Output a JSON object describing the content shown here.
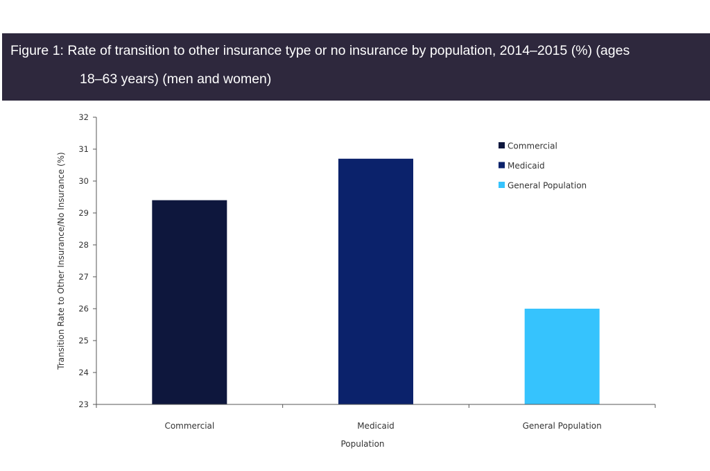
{
  "figure": {
    "title_line1": "Figure 1: Rate of transition to other insurance type or no insurance by population, 2014–2015 (%) (ages",
    "title_line2": "18–63 years) (men and women)"
  },
  "chart_data": {
    "type": "bar",
    "title": "Figure 1: Rate of transition to other insurance type or no insurance by population, 2014–2015 (%) (ages 18–63 years) (men and women)",
    "categories": [
      "Commercial",
      "Medicaid",
      "General Population"
    ],
    "values": [
      29.4,
      30.7,
      26.0
    ],
    "colors": [
      "#0e173d",
      "#0b226b",
      "#36c3fd"
    ],
    "xlabel": "Population",
    "ylabel": "Transition Rate to Other Insurance/No Insurance (%)",
    "ylim": [
      23,
      32
    ],
    "yticks": [
      "23",
      "24",
      "25",
      "26",
      "27",
      "28",
      "29",
      "30",
      "31",
      "32"
    ],
    "grid": false,
    "legend": {
      "position": "top-right",
      "entries": [
        "Commercial",
        "Medicaid",
        "General Population"
      ]
    }
  }
}
